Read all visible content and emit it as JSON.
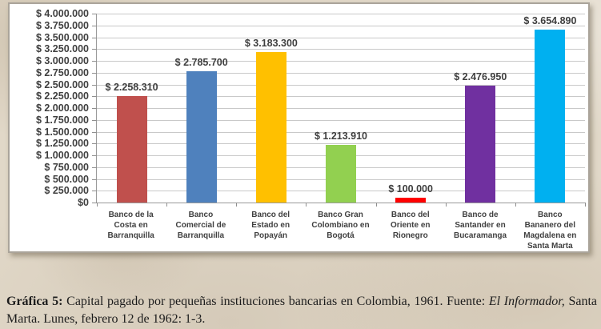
{
  "page": {
    "background": "#e1d8c8",
    "frame_border": "#aaa49a"
  },
  "caption": {
    "label_bold": "Gráfica 5:",
    "text_before_source": " Capital pagado por pequeñas instituciones bancarias en Colombia, 1961. Fuente: ",
    "source_italic": "El Informador,",
    "text_after_source": " Santa Marta. Lunes, febrero 12 de 1962: 1-3."
  },
  "chart_data": {
    "type": "bar",
    "title": "",
    "xlabel": "",
    "ylabel": "",
    "legend": "none",
    "grid": "horizontal",
    "categories": [
      "Banco de la Costa en Barranquilla",
      "Banco Comercial de Barranquilla",
      "Banco del Estado en Popayán",
      "Banco Gran Colombiano en Bogotá",
      "Banco del Oriente en Rionegro",
      "Banco de Santander en Bucaramanga",
      "Banco Bananero del Magdalena en Santa Marta"
    ],
    "values": [
      2258310,
      2785700,
      3183300,
      1213910,
      100000,
      2476950,
      3654890
    ],
    "value_labels": [
      "$ 2.258.310",
      "$ 2.785.700",
      "$ 3.183.300",
      "$ 1.213.910",
      "$ 100.000",
      "$ 2.476.950",
      "$ 3.654.890"
    ],
    "bar_colors": [
      "#c0504d",
      "#4f81bd",
      "#ffc000",
      "#92d050",
      "#ff0000",
      "#7030a0",
      "#00b0f0"
    ],
    "ylim": [
      0,
      4000000
    ],
    "ytick_step": 250000,
    "ytick_labels_top_to_bottom": [
      "$ 4.000.000",
      "$ 3.750.000",
      "$ 3.500.000",
      "$ 3.250.000",
      "$ 3.000.000",
      "$ 2.750.000",
      "$ 2.500.000",
      "$ 2.250.000",
      "$ 2.000.000",
      "$ 1.750.000",
      "$ 1.500.000",
      "$ 1.250.000",
      "$ 1.000.000",
      "$ 750.000",
      "$ 500.000",
      "$ 250.000",
      "$0"
    ]
  }
}
